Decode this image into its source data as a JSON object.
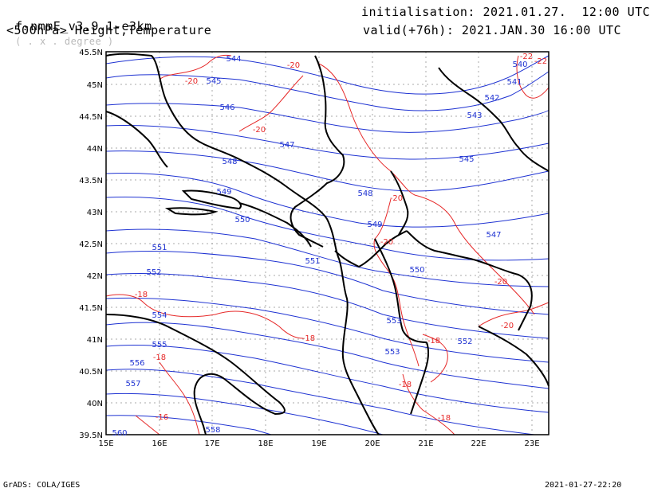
{
  "header": {
    "model": "f-nmmE_v3.9.1-e3km",
    "units": "( . x . degree )",
    "field": "<500hPa> Height,Temperature",
    "init": "initialisation: 2021.01.27.  12:00 UTC",
    "valid": "valid(+76h): 2021.JAN.30 16:00 UTC"
  },
  "footer": {
    "left": "GrADS: COLA/IGES",
    "right": "2021-01-27-22:20"
  },
  "map": {
    "lat_labels": [
      "45.5N",
      "45N",
      "44.5N",
      "44N",
      "43.5N",
      "43N",
      "42.5N",
      "42N",
      "41.5N",
      "41N",
      "40.5N",
      "40N",
      "39.5N"
    ],
    "lon_labels": [
      "15E",
      "16E",
      "17E",
      "18E",
      "19E",
      "20E",
      "21E",
      "22E",
      "23E"
    ],
    "colors": {
      "height": "#1e32d2",
      "temperature": "#e62828",
      "coast": "#000000",
      "grid": "#aaaaaa"
    },
    "height_labels": [
      "544",
      "545",
      "546",
      "547",
      "548",
      "549",
      "550",
      "551",
      "552",
      "553",
      "554",
      "555",
      "556",
      "557",
      "558",
      "540",
      "541",
      "542",
      "543",
      "545",
      "547",
      "548",
      "549",
      "550",
      "551",
      "552",
      "553",
      "560"
    ],
    "temp_labels": [
      "-20",
      "-20",
      "-20",
      "-20",
      "-20",
      "-20",
      "-20",
      "-22",
      "-18",
      "-18",
      "-18",
      "-18",
      "-18",
      "-18",
      "-16",
      "-22"
    ]
  }
}
